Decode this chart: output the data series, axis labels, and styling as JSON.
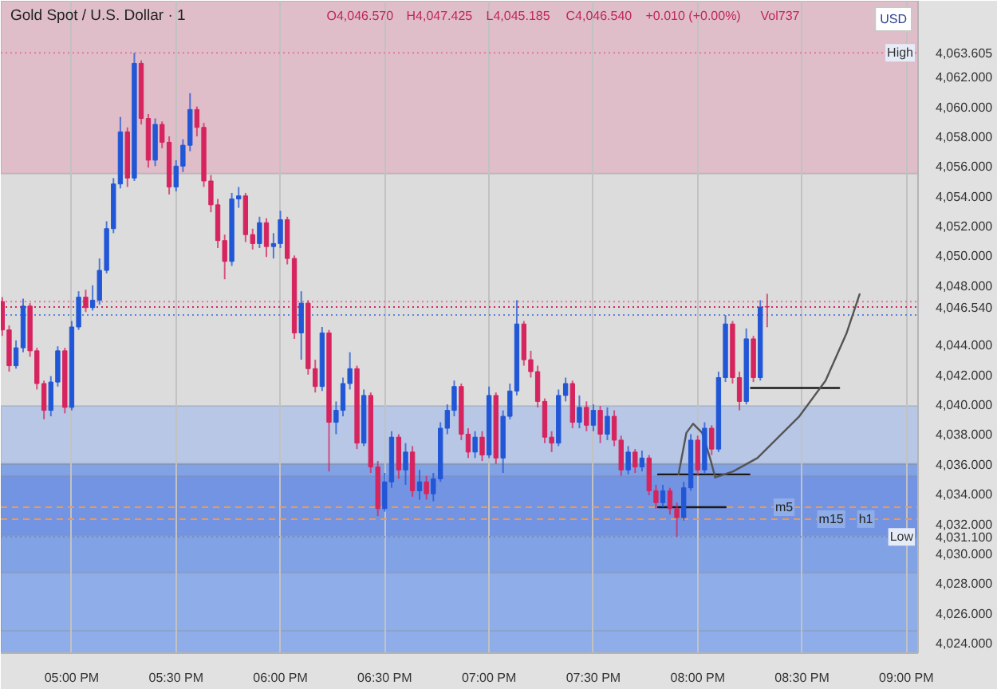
{
  "chart_data": {
    "type": "candlestick",
    "title": "Gold Spot / U.S. Dollar · 1",
    "ylabel": "USD",
    "annotations": [
      "O4,046.570",
      "H4,047.425",
      "L4,045.185",
      "C4,046.540",
      "+0.010 (+0.00%)",
      "Vol737",
      {
        "text": "m5",
        "x": 20.414,
        "y": 4033.1
      },
      {
        "text": "m15",
        "x": 20.64,
        "y": 4032.3
      },
      {
        "text": "h1",
        "x": 20.806,
        "y": 4032.3
      }
    ],
    "x": [
      16.667,
      16.7,
      16.733,
      16.767,
      16.8,
      16.833,
      16.867,
      16.9,
      16.933,
      16.967,
      17.0,
      17.033,
      17.067,
      17.1,
      17.133,
      17.167,
      17.2,
      17.233,
      17.267,
      17.3,
      17.333,
      17.367,
      17.4,
      17.433,
      17.467,
      17.5,
      17.533,
      17.567,
      17.6,
      17.633,
      17.667,
      17.7,
      17.733,
      17.767,
      17.8,
      17.833,
      17.867,
      17.9,
      17.933,
      17.967,
      18.0,
      18.033,
      18.067,
      18.1,
      18.133,
      18.167,
      18.2,
      18.233,
      18.267,
      18.3,
      18.333,
      18.367,
      18.4,
      18.433,
      18.467,
      18.5,
      18.533,
      18.567,
      18.6,
      18.633,
      18.667,
      18.7,
      18.733,
      18.767,
      18.8,
      18.833,
      18.867,
      18.9,
      18.933,
      18.967,
      19.0,
      19.033,
      19.067,
      19.1,
      19.133,
      19.167,
      19.2,
      19.233,
      19.267,
      19.3,
      19.333,
      19.367,
      19.4,
      19.433,
      19.467,
      19.5,
      19.533,
      19.567,
      19.6,
      19.633,
      19.667,
      19.7,
      19.733,
      19.767,
      19.8,
      19.833,
      19.867,
      19.9,
      19.933,
      19.967,
      20.0,
      20.033,
      20.067,
      20.1,
      20.133,
      20.167,
      20.2,
      20.233,
      20.267,
      20.3,
      20.333
    ],
    "ohlc": [
      [
        4046.9,
        4047.2,
        4044.6,
        4045.0
      ],
      [
        4045.0,
        4045.3,
        4042.2,
        4042.6
      ],
      [
        4042.6,
        4044.3,
        4042.4,
        4043.8
      ],
      [
        4043.8,
        4047.1,
        4043.5,
        4046.6
      ],
      [
        4046.6,
        4046.8,
        4043.2,
        4043.6
      ],
      [
        4043.6,
        4043.8,
        4041.0,
        4041.4
      ],
      [
        4041.4,
        4041.6,
        4039.0,
        4039.6
      ],
      [
        4039.6,
        4041.9,
        4039.2,
        4041.5
      ],
      [
        4041.5,
        4043.9,
        4041.2,
        4043.6
      ],
      [
        4043.6,
        4043.8,
        4039.4,
        4039.8
      ],
      [
        4039.8,
        4045.6,
        4039.6,
        4045.2
      ],
      [
        4045.2,
        4047.6,
        4045.0,
        4047.2
      ],
      [
        4047.2,
        4047.7,
        4046.2,
        4046.5
      ],
      [
        4046.5,
        4048.0,
        4046.3,
        4047.0
      ],
      [
        4047.0,
        4049.8,
        4046.7,
        4049.0
      ],
      [
        4049.0,
        4052.3,
        4048.8,
        4051.8
      ],
      [
        4051.8,
        4055.2,
        4051.5,
        4054.8
      ],
      [
        4054.8,
        4059.3,
        4054.5,
        4058.3
      ],
      [
        4058.3,
        4058.6,
        4054.6,
        4055.2
      ],
      [
        4055.2,
        4063.605,
        4055.0,
        4062.9
      ],
      [
        4062.9,
        4063.1,
        4058.8,
        4059.2
      ],
      [
        4059.2,
        4059.5,
        4055.9,
        4056.4
      ],
      [
        4056.4,
        4059.2,
        4056.0,
        4058.8
      ],
      [
        4058.8,
        4059.0,
        4057.2,
        4057.6
      ],
      [
        4057.6,
        4058.0,
        4054.1,
        4054.6
      ],
      [
        4054.6,
        4056.4,
        4054.3,
        4056.0
      ],
      [
        4056.0,
        4057.8,
        4055.6,
        4057.4
      ],
      [
        4057.4,
        4060.9,
        4057.0,
        4059.8
      ],
      [
        4059.8,
        4060.0,
        4058.0,
        4058.6
      ],
      [
        4058.6,
        4058.9,
        4054.6,
        4055.0
      ],
      [
        4055.0,
        4055.4,
        4052.9,
        4053.4
      ],
      [
        4053.4,
        4053.8,
        4050.5,
        4051.0
      ],
      [
        4051.0,
        4051.4,
        4048.4,
        4049.6
      ],
      [
        4049.6,
        4054.2,
        4049.3,
        4053.8
      ],
      [
        4053.8,
        4054.6,
        4053.2,
        4054.0
      ],
      [
        4054.0,
        4054.2,
        4050.9,
        4051.4
      ],
      [
        4051.4,
        4051.8,
        4050.4,
        4050.8
      ],
      [
        4050.8,
        4052.6,
        4050.5,
        4052.2
      ],
      [
        4052.2,
        4052.5,
        4049.9,
        4050.6
      ],
      [
        4050.6,
        4051.5,
        4049.8,
        4050.8
      ],
      [
        4050.8,
        4053.0,
        4050.5,
        4052.4
      ],
      [
        4052.4,
        4052.6,
        4049.4,
        4049.8
      ],
      [
        4049.8,
        4050.0,
        4044.4,
        4044.8
      ],
      [
        4044.8,
        4047.6,
        4043.0,
        4046.8
      ],
      [
        4046.8,
        4047.0,
        4042.0,
        4042.4
      ],
      [
        4042.4,
        4043.0,
        4040.8,
        4041.2
      ],
      [
        4041.2,
        4045.2,
        4040.9,
        4044.8
      ],
      [
        4044.8,
        4045.0,
        4035.5,
        4038.8
      ],
      [
        4038.8,
        4040.2,
        4038.0,
        4039.6
      ],
      [
        4039.6,
        4041.8,
        4039.2,
        4041.4
      ],
      [
        4041.4,
        4043.5,
        4041.0,
        4042.4
      ],
      [
        4042.4,
        4042.6,
        4037.0,
        4037.4
      ],
      [
        4037.4,
        4041.0,
        4037.2,
        4040.6
      ],
      [
        4040.6,
        4040.8,
        4035.4,
        4035.8
      ],
      [
        4035.8,
        4036.2,
        4032.5,
        4033.0
      ],
      [
        4033.0,
        4035.4,
        4032.8,
        4034.8
      ],
      [
        4034.8,
        4038.2,
        4034.4,
        4037.8
      ],
      [
        4037.8,
        4038.0,
        4035.0,
        4035.6
      ],
      [
        4035.6,
        4037.4,
        4034.6,
        4036.8
      ],
      [
        4036.8,
        4037.2,
        4033.8,
        4034.2
      ],
      [
        4034.2,
        4035.6,
        4033.6,
        4034.8
      ],
      [
        4034.8,
        4035.2,
        4033.6,
        4034.0
      ],
      [
        4034.0,
        4035.4,
        4033.5,
        4035.0
      ],
      [
        4035.0,
        4038.8,
        4034.8,
        4038.4
      ],
      [
        4038.4,
        4040.0,
        4038.0,
        4039.6
      ],
      [
        4039.6,
        4041.6,
        4039.2,
        4041.2
      ],
      [
        4041.2,
        4041.4,
        4037.6,
        4038.0
      ],
      [
        4038.0,
        4038.4,
        4036.4,
        4036.8
      ],
      [
        4036.8,
        4038.2,
        4036.4,
        4037.8
      ],
      [
        4037.8,
        4038.2,
        4036.2,
        4036.6
      ],
      [
        4036.6,
        4041.2,
        4036.4,
        4040.6
      ],
      [
        4040.6,
        4040.8,
        4036.0,
        4036.4
      ],
      [
        4036.4,
        4039.6,
        4035.4,
        4039.2
      ],
      [
        4039.2,
        4041.4,
        4039.0,
        4040.9
      ],
      [
        4040.9,
        4047.0,
        4040.6,
        4045.4
      ],
      [
        4045.4,
        4045.6,
        4042.6,
        4043.0
      ],
      [
        4043.0,
        4043.6,
        4041.8,
        4042.2
      ],
      [
        4042.2,
        4042.6,
        4039.8,
        4040.2
      ],
      [
        4040.2,
        4040.4,
        4037.4,
        4037.8
      ],
      [
        4037.8,
        4038.2,
        4036.8,
        4037.4
      ],
      [
        4037.4,
        4041.0,
        4037.2,
        4040.6
      ],
      [
        4040.6,
        4041.8,
        4040.2,
        4041.4
      ],
      [
        4041.4,
        4041.6,
        4038.4,
        4038.8
      ],
      [
        4038.8,
        4040.6,
        4038.4,
        4039.8
      ],
      [
        4039.8,
        4040.2,
        4038.2,
        4038.6
      ],
      [
        4038.6,
        4040.0,
        4038.2,
        4039.6
      ],
      [
        4039.6,
        4039.9,
        4037.4,
        4038.0
      ],
      [
        4038.0,
        4039.8,
        4037.6,
        4039.2
      ],
      [
        4039.2,
        4039.6,
        4037.2,
        4037.6
      ],
      [
        4037.6,
        4037.9,
        4035.2,
        4035.6
      ],
      [
        4035.6,
        4037.2,
        4035.3,
        4036.8
      ],
      [
        4036.8,
        4037.0,
        4035.4,
        4035.8
      ],
      [
        4035.8,
        4036.9,
        4035.5,
        4036.4
      ],
      [
        4036.4,
        4036.6,
        4033.9,
        4034.2
      ],
      [
        4034.2,
        4034.6,
        4033.0,
        4033.4
      ],
      [
        4033.4,
        4034.6,
        4033.1,
        4034.2
      ],
      [
        4034.2,
        4034.4,
        4032.6,
        4033.0
      ],
      [
        4033.0,
        4033.4,
        4031.1,
        4032.4
      ],
      [
        4032.4,
        4034.8,
        4032.2,
        4034.4
      ],
      [
        4034.4,
        4038.0,
        4034.2,
        4037.6
      ],
      [
        4037.6,
        4037.9,
        4035.2,
        4035.6
      ],
      [
        4035.6,
        4038.8,
        4035.4,
        4038.4
      ],
      [
        4038.4,
        4038.6,
        4036.6,
        4037.0
      ],
      [
        4037.0,
        4042.2,
        4036.8,
        4041.8
      ],
      [
        4041.8,
        4046.0,
        4041.5,
        4045.4
      ],
      [
        4045.4,
        4045.6,
        4041.4,
        4041.8
      ],
      [
        4041.8,
        4042.2,
        4039.6,
        4040.2
      ],
      [
        4040.2,
        4045.1,
        4040.0,
        4044.4
      ],
      [
        4044.4,
        4044.6,
        4041.5,
        4041.8
      ],
      [
        4041.8,
        4047.0,
        4041.6,
        4046.53
      ],
      [
        4046.57,
        4047.425,
        4045.185,
        4046.54
      ]
    ],
    "colors": [
      "#d6245e",
      "#d6245e",
      "#2157d6",
      "#2157d6",
      "#d6245e",
      "#d6245e",
      "#d6245e",
      "#2157d6",
      "#2157d6",
      "#d6245e",
      "#2157d6",
      "#2157d6",
      "#d6245e",
      "#2157d6",
      "#2157d6",
      "#2157d6",
      "#2157d6",
      "#2157d6",
      "#d6245e",
      "#2157d6",
      "#d6245e",
      "#d6245e",
      "#2157d6",
      "#d6245e",
      "#d6245e",
      "#2157d6",
      "#2157d6",
      "#2157d6",
      "#d6245e",
      "#d6245e",
      "#d6245e",
      "#d6245e",
      "#d6245e",
      "#2157d6",
      "#2157d6",
      "#d6245e",
      "#d6245e",
      "#2157d6",
      "#d6245e",
      "#2157d6",
      "#2157d6",
      "#d6245e",
      "#d6245e",
      "#2157d6",
      "#d6245e",
      "#d6245e",
      "#2157d6",
      "#d6245e",
      "#2157d6",
      "#2157d6",
      "#2157d6",
      "#d6245e",
      "#2157d6",
      "#d6245e",
      "#d6245e",
      "#2157d6",
      "#2157d6",
      "#d6245e",
      "#2157d6",
      "#d6245e",
      "#2157d6",
      "#d6245e",
      "#2157d6",
      "#2157d6",
      "#2157d6",
      "#2157d6",
      "#d6245e",
      "#d6245e",
      "#2157d6",
      "#d6245e",
      "#2157d6",
      "#d6245e",
      "#2157d6",
      "#2157d6",
      "#2157d6",
      "#d6245e",
      "#d6245e",
      "#d6245e",
      "#d6245e",
      "#d6245e",
      "#2157d6",
      "#2157d6",
      "#d6245e",
      "#2157d6",
      "#d6245e",
      "#2157d6",
      "#d6245e",
      "#2157d6",
      "#d6245e",
      "#d6245e",
      "#2157d6",
      "#d6245e",
      "#2157d6",
      "#d6245e",
      "#d6245e",
      "#2157d6",
      "#d6245e",
      "#d6245e",
      "#2157d6",
      "#2157d6",
      "#d6245e",
      "#2157d6",
      "#d6245e",
      "#2157d6",
      "#2157d6",
      "#d6245e",
      "#d6245e",
      "#2157d6",
      "#d6245e",
      "#2157d6",
      "#d6245e"
    ],
    "series": [
      {
        "type": "line",
        "color": "#1a1a1a",
        "x": [
          19.81,
          20.248
        ],
        "values": [
          4035.3,
          4035.3
        ]
      },
      {
        "type": "line",
        "color": "#1a1a1a",
        "x": [
          19.81,
          20.134
        ],
        "values": [
          4033.1,
          4033.1
        ]
      },
      {
        "type": "line",
        "color": "#1a1a1a",
        "x": [
          20.255,
          20.678
        ],
        "values": [
          4041.1,
          4041.1
        ]
      },
      {
        "type": "line",
        "color": "#555555",
        "x": [
          19.908,
          19.946,
          19.978,
          20.021,
          20.059,
          20.084
        ],
        "values": [
          4035.3,
          4038.1,
          4038.7,
          4038.1,
          4036.4,
          4035.1
        ]
      },
      {
        "type": "line",
        "color": "#555555",
        "x": [
          20.084,
          20.17,
          20.286,
          20.487,
          20.613,
          20.714,
          20.776
        ],
        "values": [
          4035.1,
          4035.5,
          4036.4,
          4039.2,
          4041.6,
          4044.8,
          4047.4
        ]
      }
    ],
    "xlim": [
      16.66,
      21.056
    ],
    "xticks": [
      {
        "value": 17,
        "label": "05:00 PM"
      },
      {
        "value": 17.5,
        "label": "05:30 PM"
      },
      {
        "value": 18,
        "label": "06:00 PM"
      },
      {
        "value": 18.5,
        "label": "06:30 PM"
      },
      {
        "value": 19,
        "label": "07:00 PM"
      },
      {
        "value": 19.5,
        "label": "07:30 PM"
      },
      {
        "value": 20,
        "label": "08:00 PM"
      },
      {
        "value": 20.5,
        "label": "08:30 PM"
      },
      {
        "value": 21,
        "label": "09:00 PM"
      }
    ],
    "ylim": [
      4023.3,
      4067.1
    ],
    "yticks": [
      {
        "value": 4024,
        "label": "4,024.000"
      },
      {
        "value": 4026,
        "label": "4,026.000"
      },
      {
        "value": 4028,
        "label": "4,028.000"
      },
      {
        "value": 4030,
        "label": "4,030.000"
      },
      {
        "value": 4031.1,
        "label": "4,031.100"
      },
      {
        "value": 4032,
        "label": "4,032.000"
      },
      {
        "value": 4034,
        "label": "4,034.000"
      },
      {
        "value": 4036,
        "label": "4,036.000"
      },
      {
        "value": 4038,
        "label": "4,038.000"
      },
      {
        "value": 4040,
        "label": "4,040.000"
      },
      {
        "value": 4042,
        "label": "4,042.000"
      },
      {
        "value": 4044,
        "label": "4,044.000"
      },
      {
        "value": 4046.54,
        "label": "4,046.540"
      },
      {
        "value": 4048,
        "label": "4,048.000"
      },
      {
        "value": 4050,
        "label": "4,050.000"
      },
      {
        "value": 4052,
        "label": "4,052.000"
      },
      {
        "value": 4054,
        "label": "4,054.000"
      },
      {
        "value": 4056,
        "label": "4,056.000"
      },
      {
        "value": 4058,
        "label": "4,058.000"
      },
      {
        "value": 4060,
        "label": "4,060.000"
      },
      {
        "value": 4062,
        "label": "4,062.000"
      },
      {
        "value": 4063.605,
        "label": "4,063.605"
      }
    ],
    "grid": "x",
    "bands": [
      {
        "axis": "y",
        "from": 4055.5,
        "to": 4067.1,
        "color": "#dfbdc9"
      },
      {
        "axis": "y",
        "from": 4024.8,
        "to": 4039.9,
        "color": "#b7c7e5"
      },
      {
        "axis": "y",
        "from": 4023.3,
        "to": 4036.0,
        "color": "#8eade9"
      },
      {
        "axis": "y",
        "from": 4028.7,
        "to": 4036.0,
        "color": "#82a2e6"
      },
      {
        "axis": "y",
        "from": 4031.2,
        "to": 4035.2,
        "color": "#7394e2"
      }
    ],
    "ref_lines": [
      {
        "axis": "y",
        "value": 4063.605,
        "label": "High",
        "color": "#e07a9a",
        "line_style": "dotted"
      },
      {
        "axis": "y",
        "value": 4046.9,
        "color": "#e07a9a",
        "line_style": "dotted"
      },
      {
        "axis": "y",
        "value": 4046.54,
        "color": "#d6245e",
        "line_style": "dotted"
      },
      {
        "axis": "y",
        "value": 4046.0,
        "color": "#5b84e0",
        "line_style": "dotted"
      },
      {
        "axis": "y",
        "value": 4033.1,
        "color": "#e89a5a",
        "line_style": "dashed"
      },
      {
        "axis": "y",
        "value": 4032.3,
        "color": "#e89a5a",
        "line_style": "dashed"
      },
      {
        "axis": "y",
        "value": 4031.1,
        "label": "Low",
        "color": "#6f8cc8",
        "line_style": "dotted"
      }
    ]
  }
}
